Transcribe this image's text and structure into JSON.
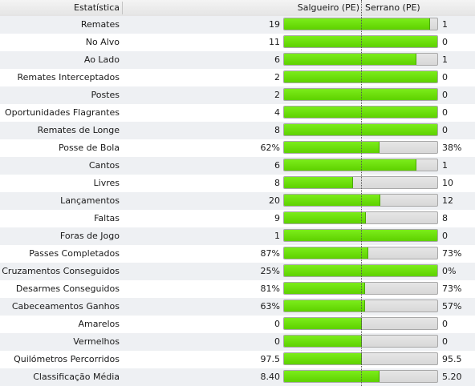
{
  "header": {
    "stat_label": "Estatística",
    "home_team": "Salgueiro (PE)",
    "away_team": "Serrano (PE)"
  },
  "colors": {
    "bar_fill": "#6ee00c",
    "bar_track": "#dcdcdc",
    "row_alt": "#eef0f3"
  },
  "stats": [
    {
      "label": "Remates",
      "home": "19",
      "away": "1",
      "home_share": 0.95
    },
    {
      "label": "No Alvo",
      "home": "11",
      "away": "0",
      "home_share": 1.0
    },
    {
      "label": "Ao Lado",
      "home": "6",
      "away": "1",
      "home_share": 0.857
    },
    {
      "label": "Remates Interceptados",
      "home": "2",
      "away": "0",
      "home_share": 1.0
    },
    {
      "label": "Postes",
      "home": "2",
      "away": "0",
      "home_share": 1.0
    },
    {
      "label": "Oportunidades Flagrantes",
      "home": "4",
      "away": "0",
      "home_share": 1.0
    },
    {
      "label": "Remates de Longe",
      "home": "8",
      "away": "0",
      "home_share": 1.0
    },
    {
      "label": "Posse de Bola",
      "home": "62%",
      "away": "38%",
      "home_share": 0.62
    },
    {
      "label": "Cantos",
      "home": "6",
      "away": "1",
      "home_share": 0.857
    },
    {
      "label": "Livres",
      "home": "8",
      "away": "10",
      "home_share": 0.444
    },
    {
      "label": "Lançamentos",
      "home": "20",
      "away": "12",
      "home_share": 0.625
    },
    {
      "label": "Faltas",
      "home": "9",
      "away": "8",
      "home_share": 0.529
    },
    {
      "label": "Foras de Jogo",
      "home": "1",
      "away": "0",
      "home_share": 1.0
    },
    {
      "label": "Passes Completados",
      "home": "87%",
      "away": "73%",
      "home_share": 0.544
    },
    {
      "label": "Cruzamentos Conseguidos",
      "home": "25%",
      "away": "0%",
      "home_share": 1.0
    },
    {
      "label": "Desarmes Conseguidos",
      "home": "81%",
      "away": "73%",
      "home_share": 0.526
    },
    {
      "label": "Cabeceamentos Ganhos",
      "home": "63%",
      "away": "57%",
      "home_share": 0.525
    },
    {
      "label": "Amarelos",
      "home": "0",
      "away": "0",
      "home_share": 0.5
    },
    {
      "label": "Vermelhos",
      "home": "0",
      "away": "0",
      "home_share": 0.5
    },
    {
      "label": "Quilómetros Percorridos",
      "home": "97.5",
      "away": "95.5",
      "home_share": 0.505
    },
    {
      "label": "Classificação Média",
      "home": "8.40",
      "away": "5.20",
      "home_share": 0.618
    }
  ]
}
